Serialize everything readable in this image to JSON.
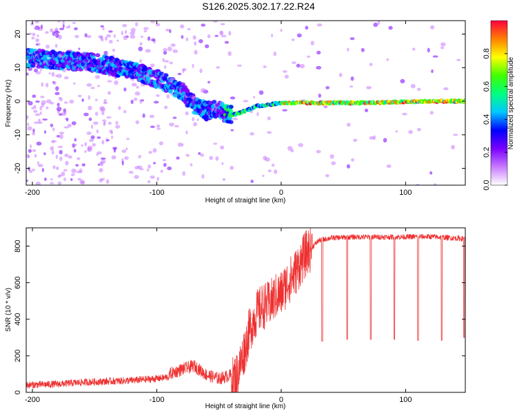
{
  "title": "S126.2025.302.17.22.R24",
  "chart_data": [
    {
      "type": "heatmap",
      "name": "spectrogram",
      "xlabel": "Height of straight line (km)",
      "ylabel": "Frequency (Hz)",
      "xlim": [
        -205,
        148
      ],
      "ylim": [
        -25,
        24
      ],
      "x_ticks": [
        -200,
        -100,
        0,
        100
      ],
      "x_tick_labels": [
        "-200",
        "-100",
        "0",
        "100"
      ],
      "y_ticks": [
        20,
        10,
        0,
        -10,
        -20
      ],
      "y_tick_labels": [
        "20",
        "10",
        "0",
        "-10",
        "-20"
      ],
      "ridge": {
        "x": [
          -205,
          -170,
          -150,
          -130,
          -110,
          -95,
          -80,
          -70,
          -60,
          -52,
          -45,
          -38,
          -30,
          -20,
          -10,
          0,
          10,
          30,
          60,
          90,
          120,
          148
        ],
        "y": [
          13,
          12,
          11.5,
          10,
          8,
          6,
          3,
          -1,
          -3,
          -2,
          -3.5,
          -4,
          -3,
          -1.5,
          -1,
          -0.5,
          -0.5,
          -0.5,
          -0.5,
          -0.3,
          0,
          0
        ]
      },
      "colorbar": {
        "label": "Normalized spectral amplitude",
        "range": [
          0,
          1
        ],
        "ticks": [
          0.0,
          0.2,
          0.4,
          0.6,
          0.8
        ],
        "tick_labels": [
          "0.0",
          "0.2",
          "0.4",
          "0.6",
          "0.8"
        ],
        "colors": [
          "#ffffff",
          "#c87bff",
          "#7a00ff",
          "#0000ff",
          "#00c8ff",
          "#00ff80",
          "#40ff00",
          "#ffff00",
          "#ff8000",
          "#ff0040"
        ]
      }
    },
    {
      "type": "line",
      "name": "snr",
      "xlabel": "Height of straight line (km)",
      "ylabel": "SNR (10 * v/v)",
      "xlim": [
        -205,
        148
      ],
      "ylim": [
        0,
        900
      ],
      "x_ticks": [
        -200,
        -100,
        0,
        100
      ],
      "x_tick_labels": [
        "-200",
        "-100",
        "0",
        "100"
      ],
      "y_ticks": [
        0,
        200,
        400,
        600,
        800
      ],
      "y_tick_labels": [
        "0",
        "200",
        "400",
        "600",
        "800"
      ],
      "color": "#ee3030",
      "baseline": {
        "x": [
          -205,
          -180,
          -160,
          -140,
          -120,
          -100,
          -90,
          -80,
          -70,
          -60,
          -50,
          -40,
          -35,
          -30,
          -25,
          -20,
          -15,
          -10,
          -5,
          0,
          5,
          10,
          15,
          20,
          30,
          40,
          60,
          90,
          120,
          148
        ],
        "y": [
          20,
          25,
          35,
          40,
          45,
          55,
          65,
          90,
          110,
          60,
          40,
          60,
          100,
          220,
          350,
          430,
          470,
          480,
          520,
          540,
          600,
          640,
          700,
          760,
          830,
          845,
          850,
          850,
          852,
          840
        ]
      },
      "dips": [
        {
          "x": 33,
          "y": 280
        },
        {
          "x": 53,
          "y": 290
        },
        {
          "x": 72,
          "y": 290
        },
        {
          "x": 91,
          "y": 290
        },
        {
          "x": 110,
          "y": 285
        },
        {
          "x": 129,
          "y": 285
        },
        {
          "x": 147,
          "y": 300
        }
      ]
    }
  ]
}
